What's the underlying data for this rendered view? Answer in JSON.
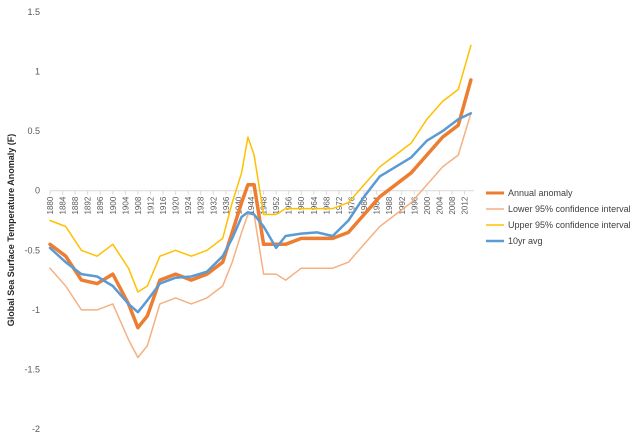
{
  "chart_data": {
    "type": "line",
    "title": "",
    "xlabel": "",
    "ylabel": "Global Sea Surface Temperature Anomaly (F)",
    "ylim": [
      -2,
      1.5
    ],
    "yticks": [
      1.5,
      1,
      0.5,
      0,
      -0.5,
      -1,
      -1.5,
      -2
    ],
    "ytick_labels": [
      "1.5",
      "1",
      "0.5",
      "0",
      "-0.5",
      "-1",
      "-1.5",
      "-2"
    ],
    "xlim": [
      1880,
      2015
    ],
    "xticks": [
      1880,
      1884,
      1888,
      1892,
      1896,
      1900,
      1904,
      1908,
      1912,
      1916,
      1920,
      1924,
      1928,
      1932,
      1936,
      1940,
      1944,
      1948,
      1952,
      1956,
      1960,
      1964,
      1968,
      1972,
      1976,
      1980,
      1984,
      1988,
      1992,
      1996,
      2000,
      2004,
      2008,
      2012
    ],
    "xtick_labels": [
      "1880",
      "1884",
      "1888",
      "1892",
      "1896",
      "1900",
      "1904",
      "1908",
      "1912",
      "1916",
      "1920",
      "1924",
      "1928",
      "1932",
      "1936",
      "1940",
      "1944",
      "1948",
      "1952",
      "1956",
      "1960",
      "1964",
      "1968",
      "1972",
      "1976",
      "1980",
      "1984",
      "1988",
      "1992",
      "1996",
      "2000",
      "2004",
      "2008",
      "2012"
    ],
    "grid": false,
    "legend_position": "right",
    "x": [
      1880,
      1885,
      1890,
      1895,
      1900,
      1905,
      1908,
      1911,
      1915,
      1920,
      1925,
      1930,
      1935,
      1938,
      1941,
      1943,
      1945,
      1948,
      1952,
      1955,
      1960,
      1965,
      1970,
      1975,
      1980,
      1985,
      1990,
      1995,
      2000,
      2005,
      2010,
      2014
    ],
    "series": [
      {
        "name": "Annual anomaly",
        "color": "#ED7D31",
        "stroke_width": 3.5,
        "values": [
          -0.45,
          -0.55,
          -0.75,
          -0.78,
          -0.7,
          -0.95,
          -1.15,
          -1.05,
          -0.75,
          -0.7,
          -0.75,
          -0.7,
          -0.6,
          -0.35,
          -0.1,
          0.05,
          0.05,
          -0.45,
          -0.45,
          -0.45,
          -0.4,
          -0.4,
          -0.4,
          -0.35,
          -0.2,
          -0.05,
          0.05,
          0.15,
          0.3,
          0.45,
          0.55,
          0.93
        ]
      },
      {
        "name": "Lower 95% confidence interval",
        "color": "#F4B183",
        "stroke_width": 1.5,
        "values": [
          -0.65,
          -0.8,
          -1.0,
          -1.0,
          -0.95,
          -1.25,
          -1.4,
          -1.3,
          -0.95,
          -0.9,
          -0.95,
          -0.9,
          -0.8,
          -0.6,
          -0.35,
          -0.2,
          -0.2,
          -0.7,
          -0.7,
          -0.75,
          -0.65,
          -0.65,
          -0.65,
          -0.6,
          -0.45,
          -0.3,
          -0.2,
          -0.1,
          0.05,
          0.2,
          0.3,
          0.65
        ]
      },
      {
        "name": "Upper 95% confidence interval",
        "color": "#FFC000",
        "stroke_width": 1.5,
        "values": [
          -0.25,
          -0.3,
          -0.5,
          -0.55,
          -0.45,
          -0.65,
          -0.85,
          -0.8,
          -0.55,
          -0.5,
          -0.55,
          -0.5,
          -0.4,
          -0.1,
          0.15,
          0.45,
          0.3,
          -0.2,
          -0.2,
          -0.15,
          -0.15,
          -0.15,
          -0.15,
          -0.1,
          0.05,
          0.2,
          0.3,
          0.4,
          0.6,
          0.75,
          0.85,
          1.22
        ]
      },
      {
        "name": "10yr avg",
        "color": "#5B9BD5",
        "stroke_width": 2.5,
        "values": [
          -0.48,
          -0.6,
          -0.7,
          -0.72,
          -0.8,
          -0.95,
          -1.02,
          -0.92,
          -0.78,
          -0.73,
          -0.72,
          -0.68,
          -0.55,
          -0.4,
          -0.22,
          -0.18,
          -0.2,
          -0.3,
          -0.48,
          -0.38,
          -0.36,
          -0.35,
          -0.38,
          -0.25,
          -0.05,
          0.12,
          0.2,
          0.28,
          0.42,
          0.5,
          0.6,
          0.65
        ]
      }
    ]
  }
}
